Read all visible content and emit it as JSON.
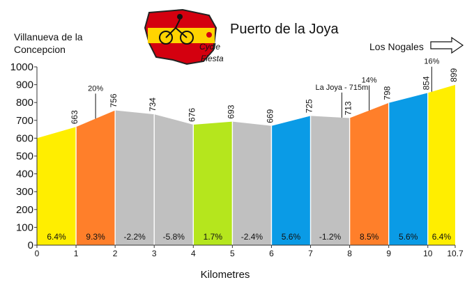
{
  "chart_data": {
    "type": "area",
    "title": "Puerto de la Joya",
    "logo_text": [
      "Cycle",
      "Fiesta"
    ],
    "start_label": [
      "Villanueva de la",
      "Concepcion"
    ],
    "end_label": "Los Nogales",
    "xlabel": "Kilometres",
    "ylabel": "",
    "xlim": [
      0,
      10.7
    ],
    "ylim": [
      0,
      1000
    ],
    "x_ticks": [
      0,
      1,
      2,
      3,
      4,
      5,
      6,
      7,
      8,
      9,
      10,
      10.7
    ],
    "y_ticks": [
      0,
      100,
      200,
      300,
      400,
      500,
      600,
      700,
      800,
      900,
      1000
    ],
    "points": [
      {
        "x": 0,
        "y": 600
      },
      {
        "x": 1,
        "y": 663
      },
      {
        "x": 2,
        "y": 756
      },
      {
        "x": 3,
        "y": 734
      },
      {
        "x": 4,
        "y": 676
      },
      {
        "x": 5,
        "y": 693
      },
      {
        "x": 6,
        "y": 669
      },
      {
        "x": 7,
        "y": 725
      },
      {
        "x": 8,
        "y": 713
      },
      {
        "x": 9,
        "y": 798
      },
      {
        "x": 10,
        "y": 854
      },
      {
        "x": 10.7,
        "y": 899
      }
    ],
    "elevation_labels": [
      "663",
      "756",
      "734",
      "676",
      "693",
      "669",
      "725",
      "713",
      "798",
      "854",
      "899"
    ],
    "segments": [
      {
        "gradient": "6.4%",
        "color": "#ffee00"
      },
      {
        "gradient": "9.3%",
        "color": "#ff7f2a"
      },
      {
        "gradient": "-2.2%",
        "color": "#c0c0c0"
      },
      {
        "gradient": "-5.8%",
        "color": "#c0c0c0"
      },
      {
        "gradient": "1.7%",
        "color": "#b5e61d"
      },
      {
        "gradient": "-2.4%",
        "color": "#c0c0c0"
      },
      {
        "gradient": "5.6%",
        "color": "#0a9be6"
      },
      {
        "gradient": "-1.2%",
        "color": "#c0c0c0"
      },
      {
        "gradient": "8.5%",
        "color": "#ff7f2a"
      },
      {
        "gradient": "5.6%",
        "color": "#0a9be6"
      },
      {
        "gradient": "6.4%",
        "color": "#ffee00"
      }
    ],
    "annotations": [
      {
        "text": "20%",
        "x": 1.5
      },
      {
        "text": "La Joya - 715m",
        "x": 7.8
      },
      {
        "text": "14%",
        "x": 8.5
      },
      {
        "text": "16%",
        "x": 10.1
      }
    ],
    "grid": false
  }
}
